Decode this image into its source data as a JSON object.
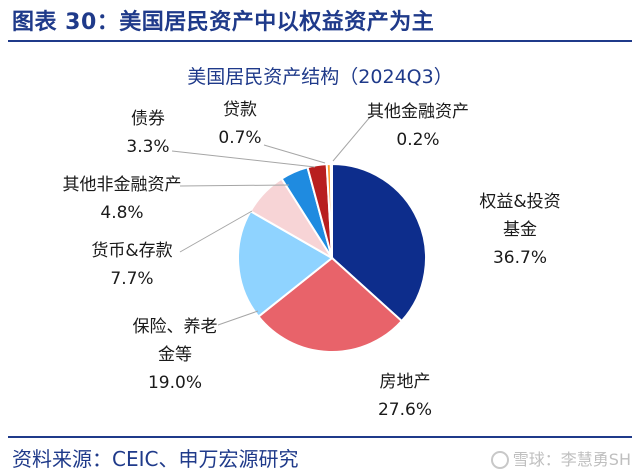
{
  "figure_title": "图表 30：美国居民资产中以权益资产为主",
  "source": "资料来源：CEIC、申万宏源研究",
  "watermark": "雪球：李慧勇SH",
  "colors": {
    "title_blue": "#1f3a8a",
    "equity": "#0d2d8c",
    "real_estate": "#e8636a",
    "insurance_pension": "#8fd3ff",
    "deposits": "#f7d4d6",
    "other_nonfinancial": "#1f8be0",
    "bonds": "#b81f1f",
    "loans": "#ff9a2e",
    "other_financial": "#bdbdbd"
  },
  "chart_data": {
    "type": "pie",
    "title": "美国居民资产结构（2024Q3）",
    "slices": [
      {
        "label_lines": [
          "权益&投资",
          "基金"
        ],
        "value": 36.7,
        "value_label": "36.7%",
        "color": "#0d2d8c"
      },
      {
        "label_lines": [
          "房地产"
        ],
        "value": 27.6,
        "value_label": "27.6%",
        "color": "#e8636a"
      },
      {
        "label_lines": [
          "保险、养老",
          "金等"
        ],
        "value": 19.0,
        "value_label": "19.0%",
        "color": "#8fd3ff"
      },
      {
        "label_lines": [
          "货币&存款"
        ],
        "value": 7.7,
        "value_label": "7.7%",
        "color": "#f7d4d6"
      },
      {
        "label_lines": [
          "其他非金融资产"
        ],
        "value": 4.8,
        "value_label": "4.8%",
        "color": "#1f8be0"
      },
      {
        "label_lines": [
          "债券"
        ],
        "value": 3.3,
        "value_label": "3.3%",
        "color": "#b81f1f"
      },
      {
        "label_lines": [
          "贷款"
        ],
        "value": 0.7,
        "value_label": "0.7%",
        "color": "#ff9a2e"
      },
      {
        "label_lines": [
          "其他金融资产"
        ],
        "value": 0.2,
        "value_label": "0.2%",
        "color": "#bdbdbd"
      }
    ]
  }
}
